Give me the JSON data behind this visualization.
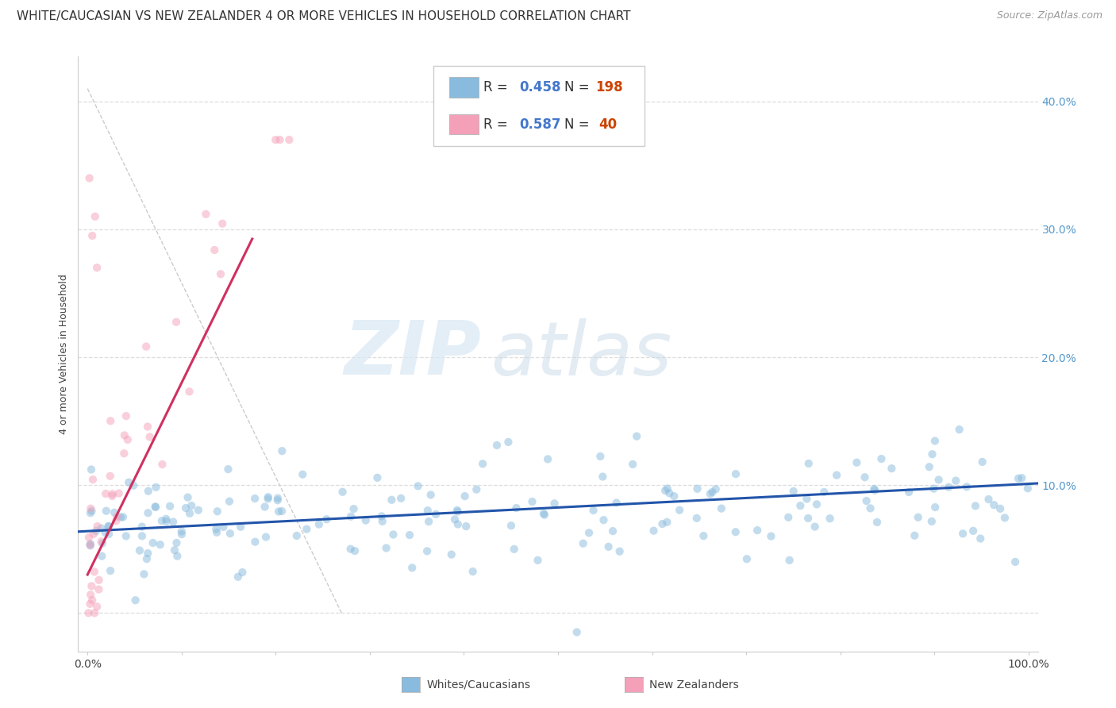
{
  "title": "WHITE/CAUCASIAN VS NEW ZEALANDER 4 OR MORE VEHICLES IN HOUSEHOLD CORRELATION CHART",
  "source": "Source: ZipAtlas.com",
  "ylabel": "4 or more Vehicles in Household",
  "watermark_zip": "ZIP",
  "watermark_atlas": "atlas",
  "blue_color": "#88bbdd",
  "blue_line_color": "#2255aa",
  "pink_color": "#f4a0b8",
  "pink_line_color": "#d03060",
  "diag_color": "#cccccc",
  "grid_color": "#dddddd",
  "background_color": "#ffffff",
  "xlim": [
    -0.01,
    1.01
  ],
  "ylim": [
    -0.03,
    0.435
  ],
  "xticks": [
    0.0,
    0.1,
    0.2,
    0.3,
    0.4,
    0.5,
    0.6,
    0.7,
    0.8,
    0.9,
    1.0
  ],
  "xticklabels": [
    "0.0%",
    "",
    "",
    "",
    "",
    "",
    "",
    "",
    "",
    "",
    "100.0%"
  ],
  "yticks": [
    0.0,
    0.1,
    0.2,
    0.3,
    0.4
  ],
  "yticklabels": [
    "",
    "10.0%",
    "20.0%",
    "30.0%",
    "40.0%"
  ],
  "tick_color": "#5599cc",
  "title_fontsize": 11,
  "axis_fontsize": 9,
  "tick_fontsize": 10,
  "scatter_size": 55,
  "scatter_alpha": 0.5,
  "legend_R_color": "#4477cc",
  "legend_N_color": "#cc4400",
  "legend_text_color": "#333333"
}
